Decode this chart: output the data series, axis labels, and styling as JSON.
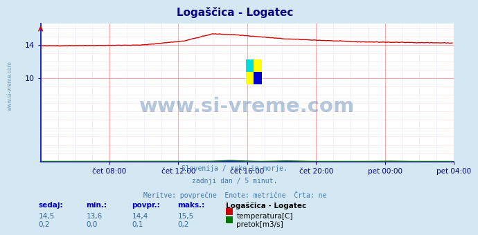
{
  "title": "Logaščica - Logatec",
  "bg_color": "#d4e8f4",
  "plot_bg_color": "#ffffff",
  "grid_major_color": "#ffaaaa",
  "grid_minor_color": "#ffe0e0",
  "grid_minor_v_color": "#e8e8f8",
  "title_color": "#000080",
  "spine_color": "#0000cc",
  "tick_color": "#000080",
  "watermark_text": "www.si-vreme.com",
  "watermark_color": "#3a6ea8",
  "left_label": "www.si-vreme.com",
  "left_label_color": "#5588aa",
  "subtitle_lines": [
    "Slovenija / reke in morje.",
    "zadnji dan / 5 minut.",
    "Meritve: povprečne  Enote: metrične  Črta: ne"
  ],
  "subtitle_color": "#4477aa",
  "xtick_labels": [
    "čet 08:00",
    "čet 12:00",
    "čet 16:00",
    "čet 20:00",
    "pet 00:00",
    "pet 04:00"
  ],
  "xtick_positions": [
    48,
    96,
    144,
    192,
    240,
    288
  ],
  "xmin": 0,
  "xmax": 288,
  "ymin": 0,
  "ymax": 16.5,
  "yticks": [
    10,
    14
  ],
  "temp_color": "#cc0000",
  "flow_color": "#007700",
  "height_color": "#0000cc",
  "legend_title": "Logaščica - Logatec",
  "legend_items": [
    {
      "label": "temperatura[C]",
      "color": "#cc0000"
    },
    {
      "label": "pretok[m3/s]",
      "color": "#007700"
    }
  ],
  "stats_headers": [
    "sedaj:",
    "min.:",
    "povpr.:",
    "maks.:"
  ],
  "stats_header_color": "#0000bb",
  "stats_temp": [
    "14,5",
    "13,6",
    "14,4",
    "15,5"
  ],
  "stats_flow": [
    "0,2",
    "0,0",
    "0,1",
    "0,2"
  ],
  "stats_val_color": "#336699",
  "n_points": 288
}
